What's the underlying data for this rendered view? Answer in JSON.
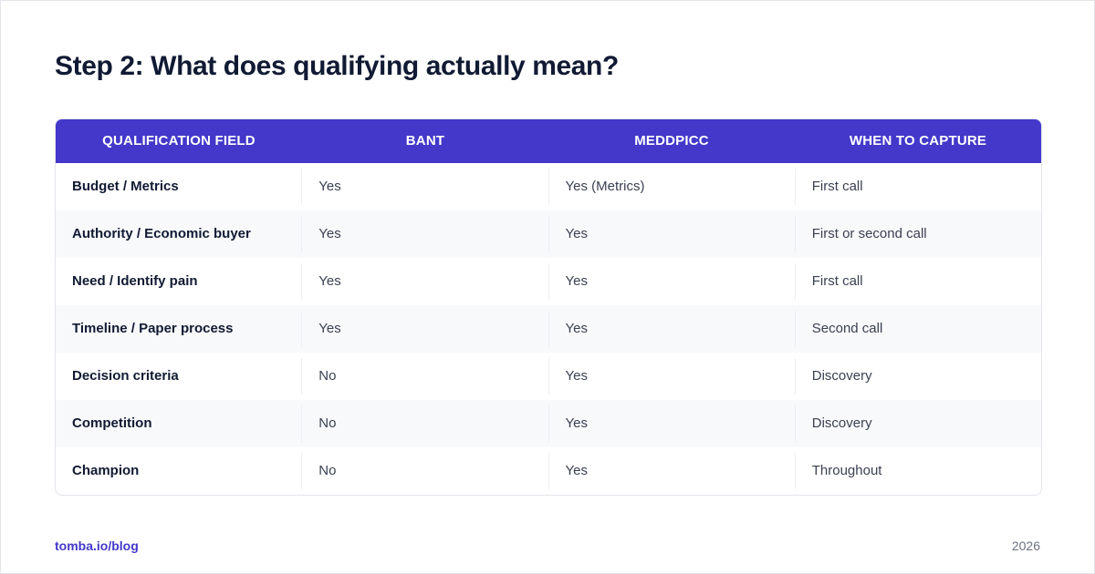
{
  "header": {
    "title": "Step 2: What does qualifying actually mean?"
  },
  "table": {
    "columns": [
      "QUALIFICATION FIELD",
      "BANT",
      "MEDDPICC",
      "WHEN TO CAPTURE"
    ],
    "rows": [
      [
        "Budget / Metrics",
        "Yes",
        "Yes (Metrics)",
        "First call"
      ],
      [
        "Authority / Economic buyer",
        "Yes",
        "Yes",
        "First or second call"
      ],
      [
        "Need / Identify pain",
        "Yes",
        "Yes",
        "First call"
      ],
      [
        "Timeline / Paper process",
        "Yes",
        "Yes",
        "Second call"
      ],
      [
        "Decision criteria",
        "No",
        "Yes",
        "Discovery"
      ],
      [
        "Competition",
        "No",
        "Yes",
        "Discovery"
      ],
      [
        "Champion",
        "No",
        "Yes",
        "Throughout"
      ]
    ]
  },
  "footer": {
    "source": "tomba.io/blog",
    "year": "2026"
  }
}
